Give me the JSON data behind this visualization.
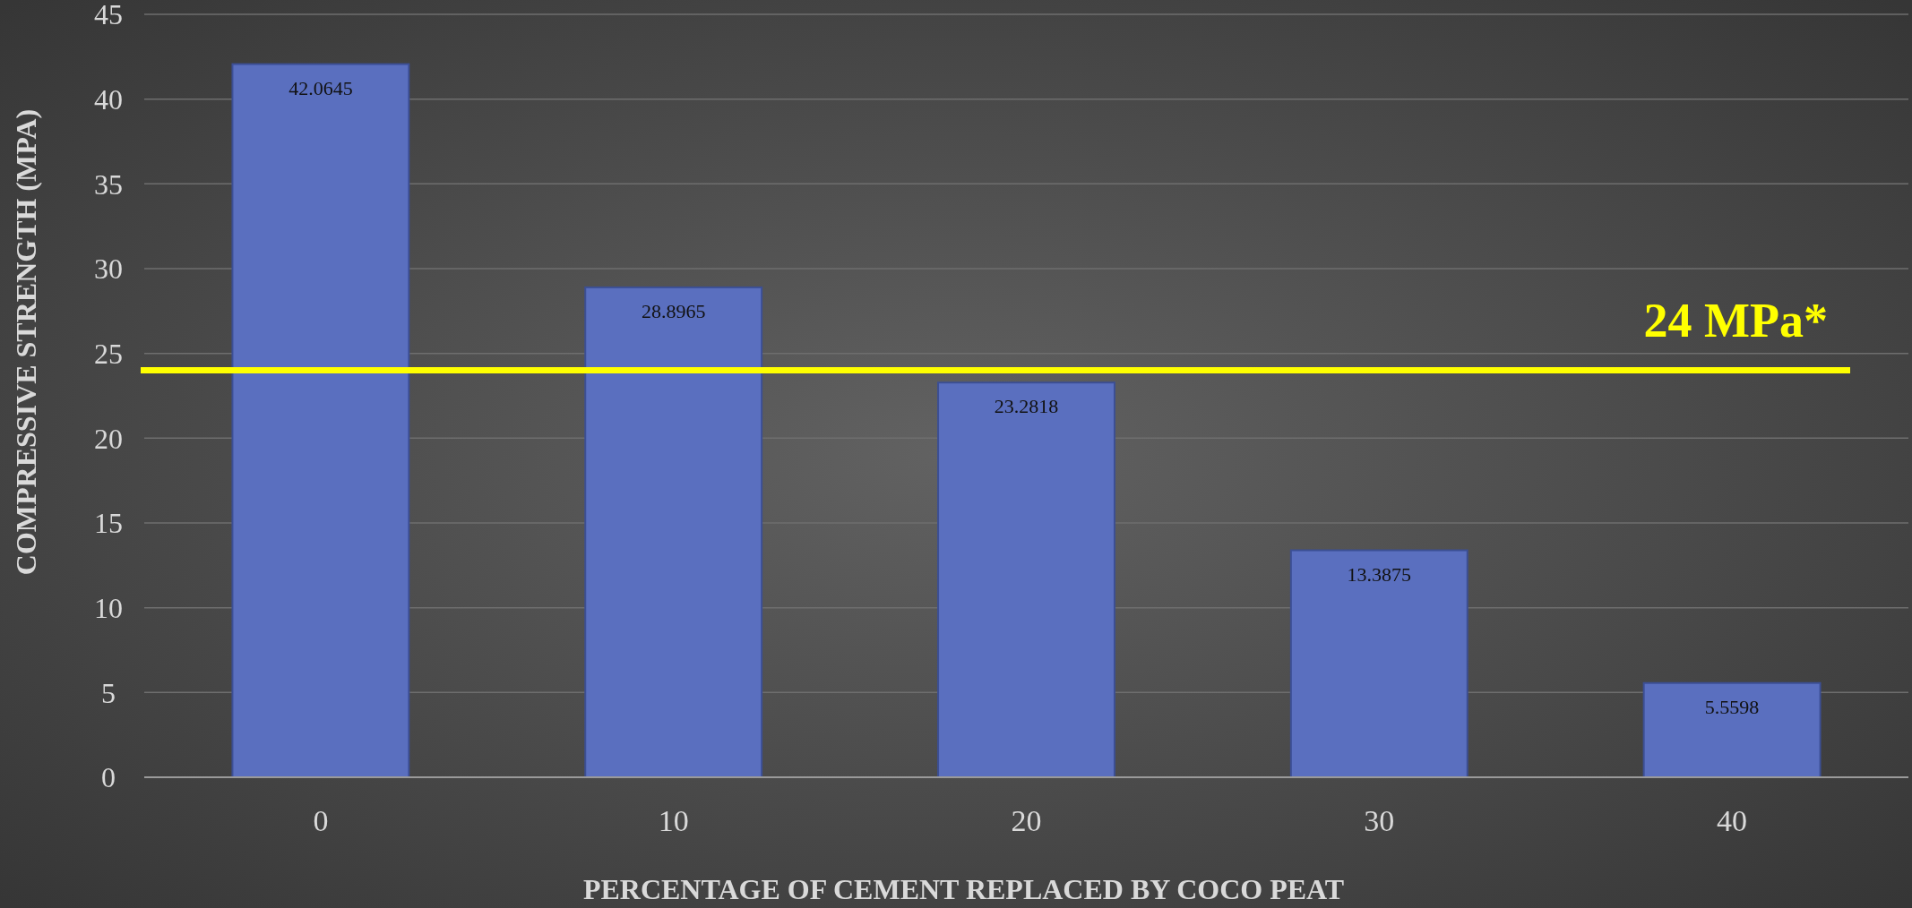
{
  "chart_data": {
    "type": "bar",
    "xlabel": "PERCENTAGE OF CEMENT REPLACED BY COCO PEAT",
    "ylabel": "COMPRESSIVE STRENGTH (MPA)",
    "categories": [
      "0",
      "10",
      "20",
      "30",
      "40"
    ],
    "values": [
      42.0645,
      28.8965,
      23.2818,
      13.3875,
      5.5598
    ],
    "color": "#5a6fbf",
    "data_labels": true,
    "ylim": [
      0,
      45
    ],
    "yticks": [
      0,
      5,
      10,
      15,
      20,
      25,
      30,
      35,
      40,
      45
    ],
    "grid": "y",
    "ref_lines": [
      {
        "axis": "y",
        "value": 24,
        "label": "24 MPa*",
        "color": "#ffff00"
      }
    ]
  }
}
